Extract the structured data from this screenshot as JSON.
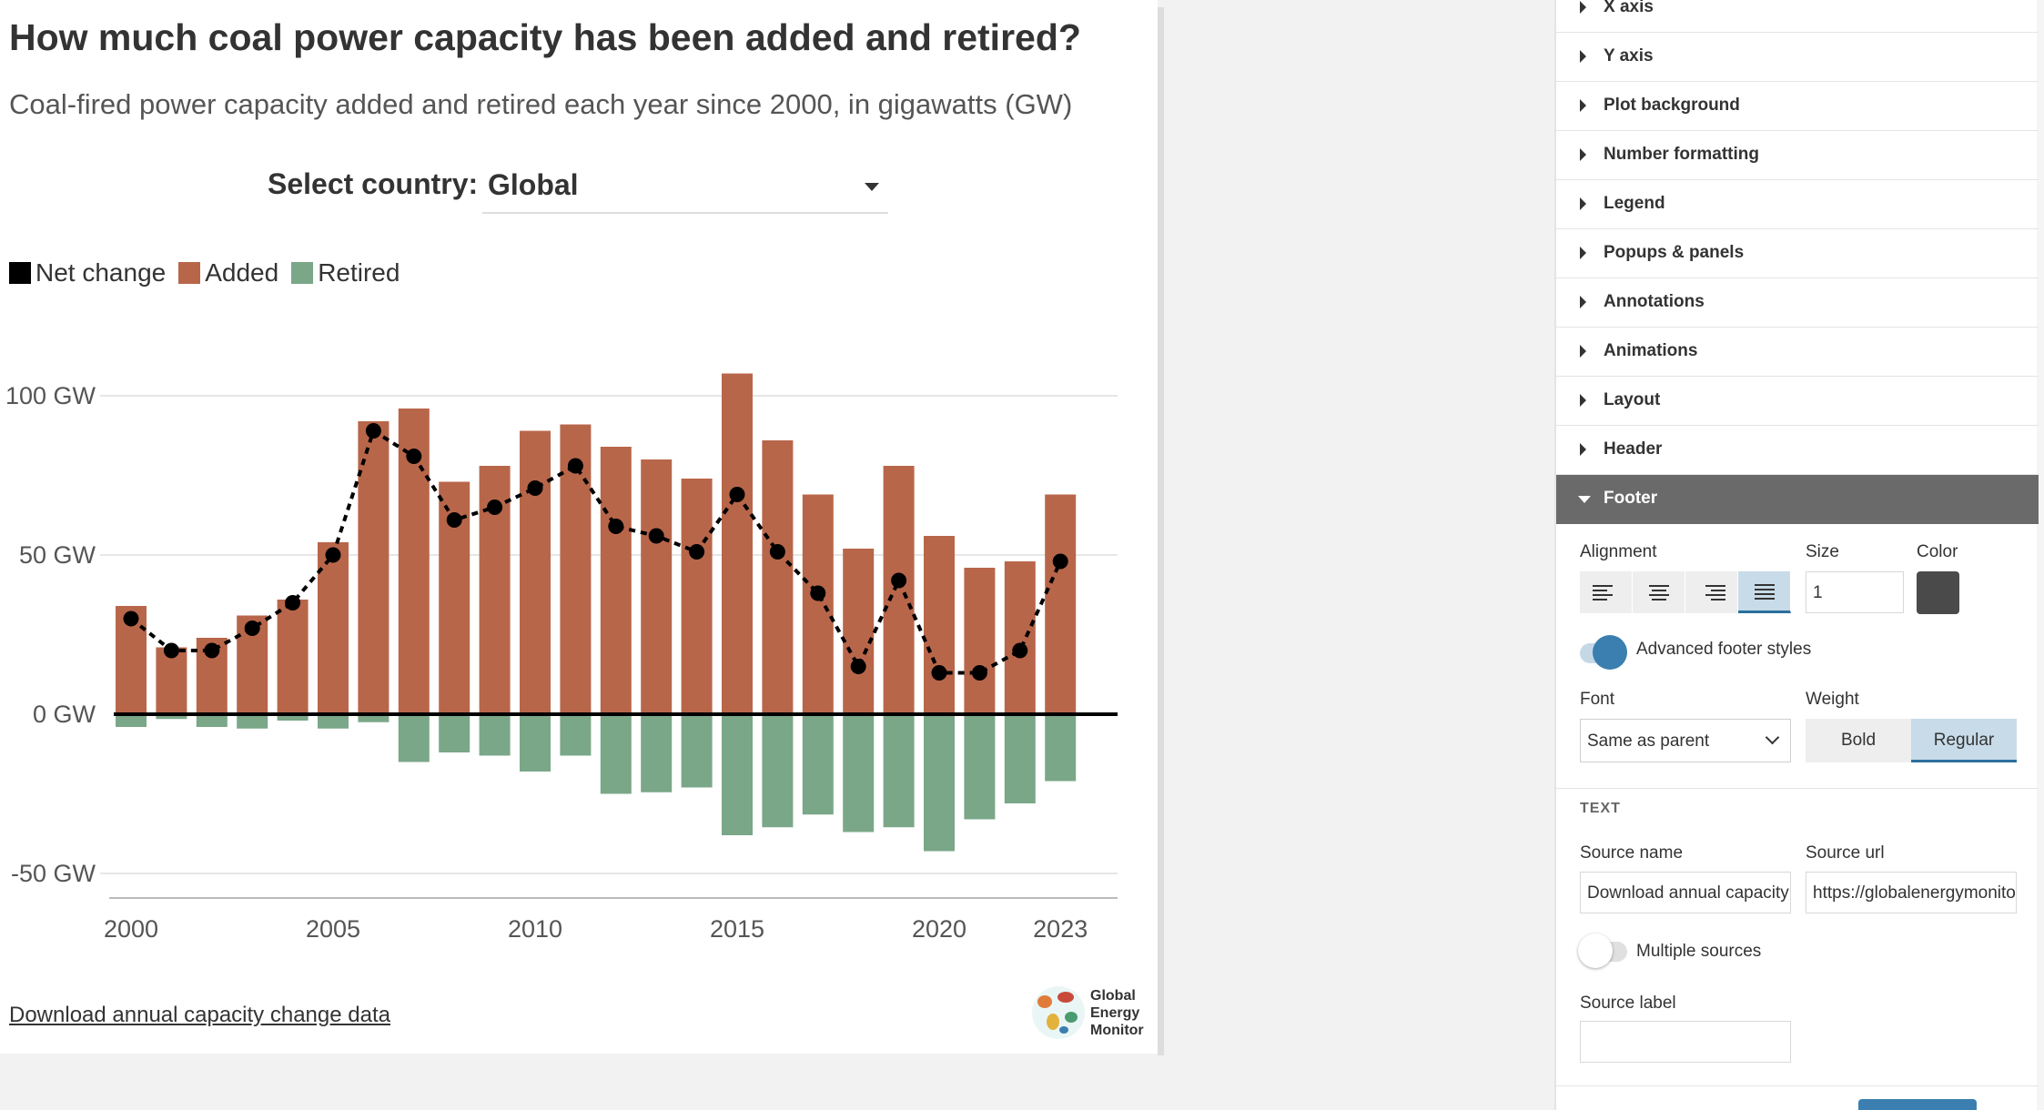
{
  "header": {
    "title": "How much coal power capacity has been added and retired?",
    "subtitle": "Coal-fired power capacity added and retired each year since 2000, in gigawatts (GW)"
  },
  "controls": {
    "country_label": "Select country:",
    "country_value": "Global"
  },
  "legend": [
    {
      "label": "Net change",
      "color": "#000000"
    },
    {
      "label": "Added",
      "color": "#b8664a"
    },
    {
      "label": "Retired",
      "color": "#7aa788"
    }
  ],
  "footer": {
    "source_link": "Download annual capacity change data",
    "logo_text": "Global\nEnergy\nMonitor"
  },
  "chart_data": {
    "type": "bar",
    "x": [
      2000,
      2001,
      2002,
      2003,
      2004,
      2005,
      2006,
      2007,
      2008,
      2009,
      2010,
      2011,
      2012,
      2013,
      2014,
      2015,
      2016,
      2017,
      2018,
      2019,
      2020,
      2021,
      2022,
      2023
    ],
    "series": [
      {
        "name": "Added",
        "type": "bar",
        "color": "#b8664a",
        "values": [
          34,
          21,
          24,
          31,
          36,
          54,
          92,
          96,
          73,
          78,
          89,
          91,
          84,
          80,
          74,
          107,
          86,
          69,
          52,
          78,
          56,
          46,
          48,
          69
        ]
      },
      {
        "name": "Retired",
        "type": "bar",
        "color": "#7aa788",
        "values": [
          -4,
          -1.5,
          -4,
          -4.5,
          -2,
          -4.5,
          -2.5,
          -15,
          -12,
          -13,
          -18,
          -13,
          -25,
          -24.5,
          -23,
          -38,
          -35.5,
          -31.5,
          -37,
          -35.5,
          -43,
          -33,
          -28,
          -21
        ]
      },
      {
        "name": "Net change",
        "type": "line",
        "style": "dashed",
        "color": "#000000",
        "values": [
          30,
          20,
          20,
          27,
          35,
          50,
          89,
          81,
          61,
          65,
          71,
          78,
          59,
          56,
          51,
          69,
          51,
          38,
          15,
          42,
          13,
          13,
          20,
          48
        ]
      }
    ],
    "y_ticks": [
      100,
      50,
      0,
      -50
    ],
    "y_tick_labels": [
      "100 GW",
      "50 GW",
      "0 GW",
      "-50 GW"
    ],
    "x_ticks": [
      2000,
      2005,
      2010,
      2015,
      2020,
      2023
    ],
    "ylim": [
      -60,
      110
    ],
    "grid": true,
    "legend_position": "top-left"
  },
  "settings_panel": {
    "sections": [
      "X axis",
      "Y axis",
      "Plot background",
      "Number formatting",
      "Legend",
      "Popups & panels",
      "Annotations",
      "Animations",
      "Layout",
      "Header",
      "Footer"
    ],
    "open_section": "Footer",
    "footer": {
      "alignment_label": "Alignment",
      "size_label": "Size",
      "size_value": "1",
      "color_label": "Color",
      "color_value": "#4a4a4a",
      "advanced_label": "Advanced footer styles",
      "font_label": "Font",
      "font_value": "Same as parent",
      "weight_label": "Weight",
      "weight_bold": "Bold",
      "weight_regular": "Regular",
      "text_heading": "TEXT",
      "source_name_label": "Source name",
      "source_name_value": "Download annual capacity change data",
      "source_url_label": "Source url",
      "source_url_value": "https://globalenergymonitor.org",
      "multiple_sources_label": "Multiple sources",
      "source_label_label": "Source label",
      "source_label_value": ""
    }
  }
}
